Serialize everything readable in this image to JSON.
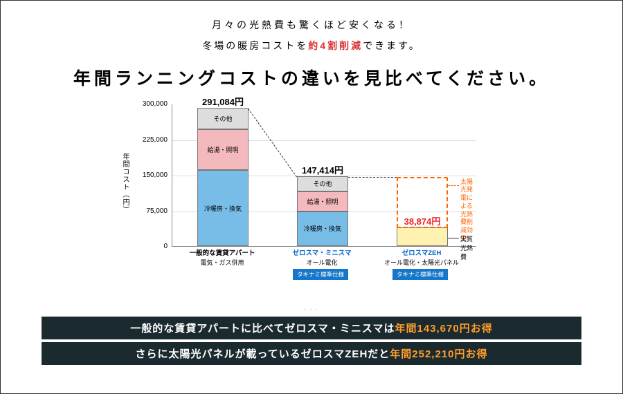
{
  "line1": "月々の光熱費も驚くほど安くなる！",
  "line2_pre": "冬場の暖房コストを",
  "line2_highlight": "約4割削減",
  "line2_post": "できます。",
  "heading": "年間ランニングコストの違いを見比べてください。",
  "chart": {
    "ylabel": "年間コスト（円）",
    "ymax": 300000,
    "ytick_step": 75000,
    "yticks": [
      "300,000",
      "225,000",
      "150,000",
      "75,000",
      "0"
    ],
    "bars": [
      {
        "key": "b1",
        "total_label": "291,084円",
        "total_color": "#000",
        "segments": [
          {
            "label": "その他",
            "value": 45000,
            "fill": "#dddddd",
            "border": true
          },
          {
            "label": "給湯・照明",
            "value": 86000,
            "fill": "#f4b9bd",
            "border": true
          },
          {
            "label": "冷暖房・換気",
            "value": 160084,
            "fill": "#78bde8",
            "border": true
          }
        ],
        "xcat_l1": "一般的な賃貸アパート",
        "xcat_l2": "電気・ガス併用",
        "xcat_blue": false,
        "spec_badge": null
      },
      {
        "key": "b2",
        "total_label": "147,414円",
        "total_color": "#000",
        "segments": [
          {
            "label": "その他",
            "value": 32000,
            "fill": "#dddddd",
            "border": true
          },
          {
            "label": "給湯・照明",
            "value": 42000,
            "fill": "#f4b9bd",
            "border": true
          },
          {
            "label": "冷暖房・換気",
            "value": 73414,
            "fill": "#78bde8",
            "border": true
          }
        ],
        "xcat_l1": "ゼロスマ・ミニスマ",
        "xcat_l2": "オール電化",
        "xcat_blue": true,
        "spec_badge": "タキナミ標準仕様"
      },
      {
        "key": "b3",
        "total_label": "38,874円",
        "total_color": "#e22",
        "segments": [
          {
            "label": "",
            "value": 38874,
            "fill": "#fff2b0",
            "border": true
          }
        ],
        "xcat_l1": "ゼロスマZEH",
        "xcat_l2": "オール電化・太陽光パネル",
        "xcat_blue": true,
        "spec_badge": "タキナミ標準仕様"
      }
    ],
    "annotation": {
      "virtual_top_value": 147414,
      "text1": "太陽光発電による",
      "text2": "光熱費削減効果*",
      "real_cost_label": "実質光熱費"
    },
    "colors": {
      "gridline": "#dddddd",
      "axis": "#888888"
    }
  },
  "footer": [
    {
      "pre": "一般的な賃貸アパートに比べてゼロスマ・ミニスマは",
      "orange": "年間143,670円お得"
    },
    {
      "pre": "さらに太陽光パネルが載っているゼロスマZEHだと",
      "orange": "年間252,210円お得"
    }
  ],
  "dots": "・・・"
}
